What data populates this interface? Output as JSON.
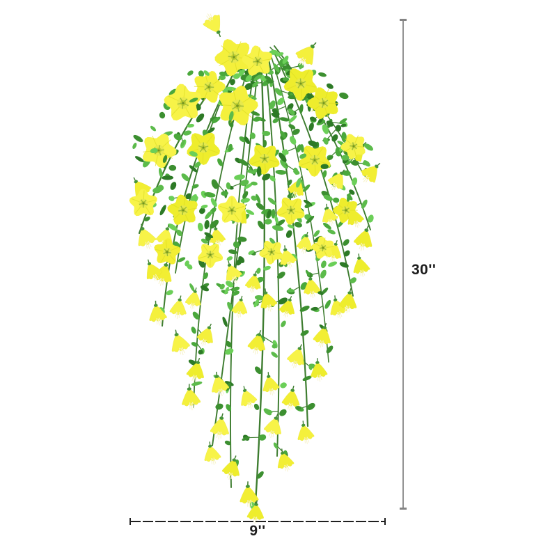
{
  "page": {
    "background_color": "#ffffff"
  },
  "product_image": {
    "alt": "Artificial hanging bush with yellow petunia flowers and green foliage on trailing stems",
    "colors": {
      "flower_yellow": "#f2ee33",
      "flower_highlight": "#f7f348",
      "flower_throat": "#c8d12f",
      "flower_center_dot": "#75941f",
      "leaf_green": "#4aa83c",
      "stem_green": "#3e7d30"
    }
  },
  "dimension_annotations": {
    "height": {
      "label": "30''"
    },
    "width": {
      "label": "9''"
    },
    "styles": {
      "vertical_line_color": "#929292",
      "horizontal_line_color": "#1f1f1f",
      "label_color": "#1c1c1c"
    }
  }
}
